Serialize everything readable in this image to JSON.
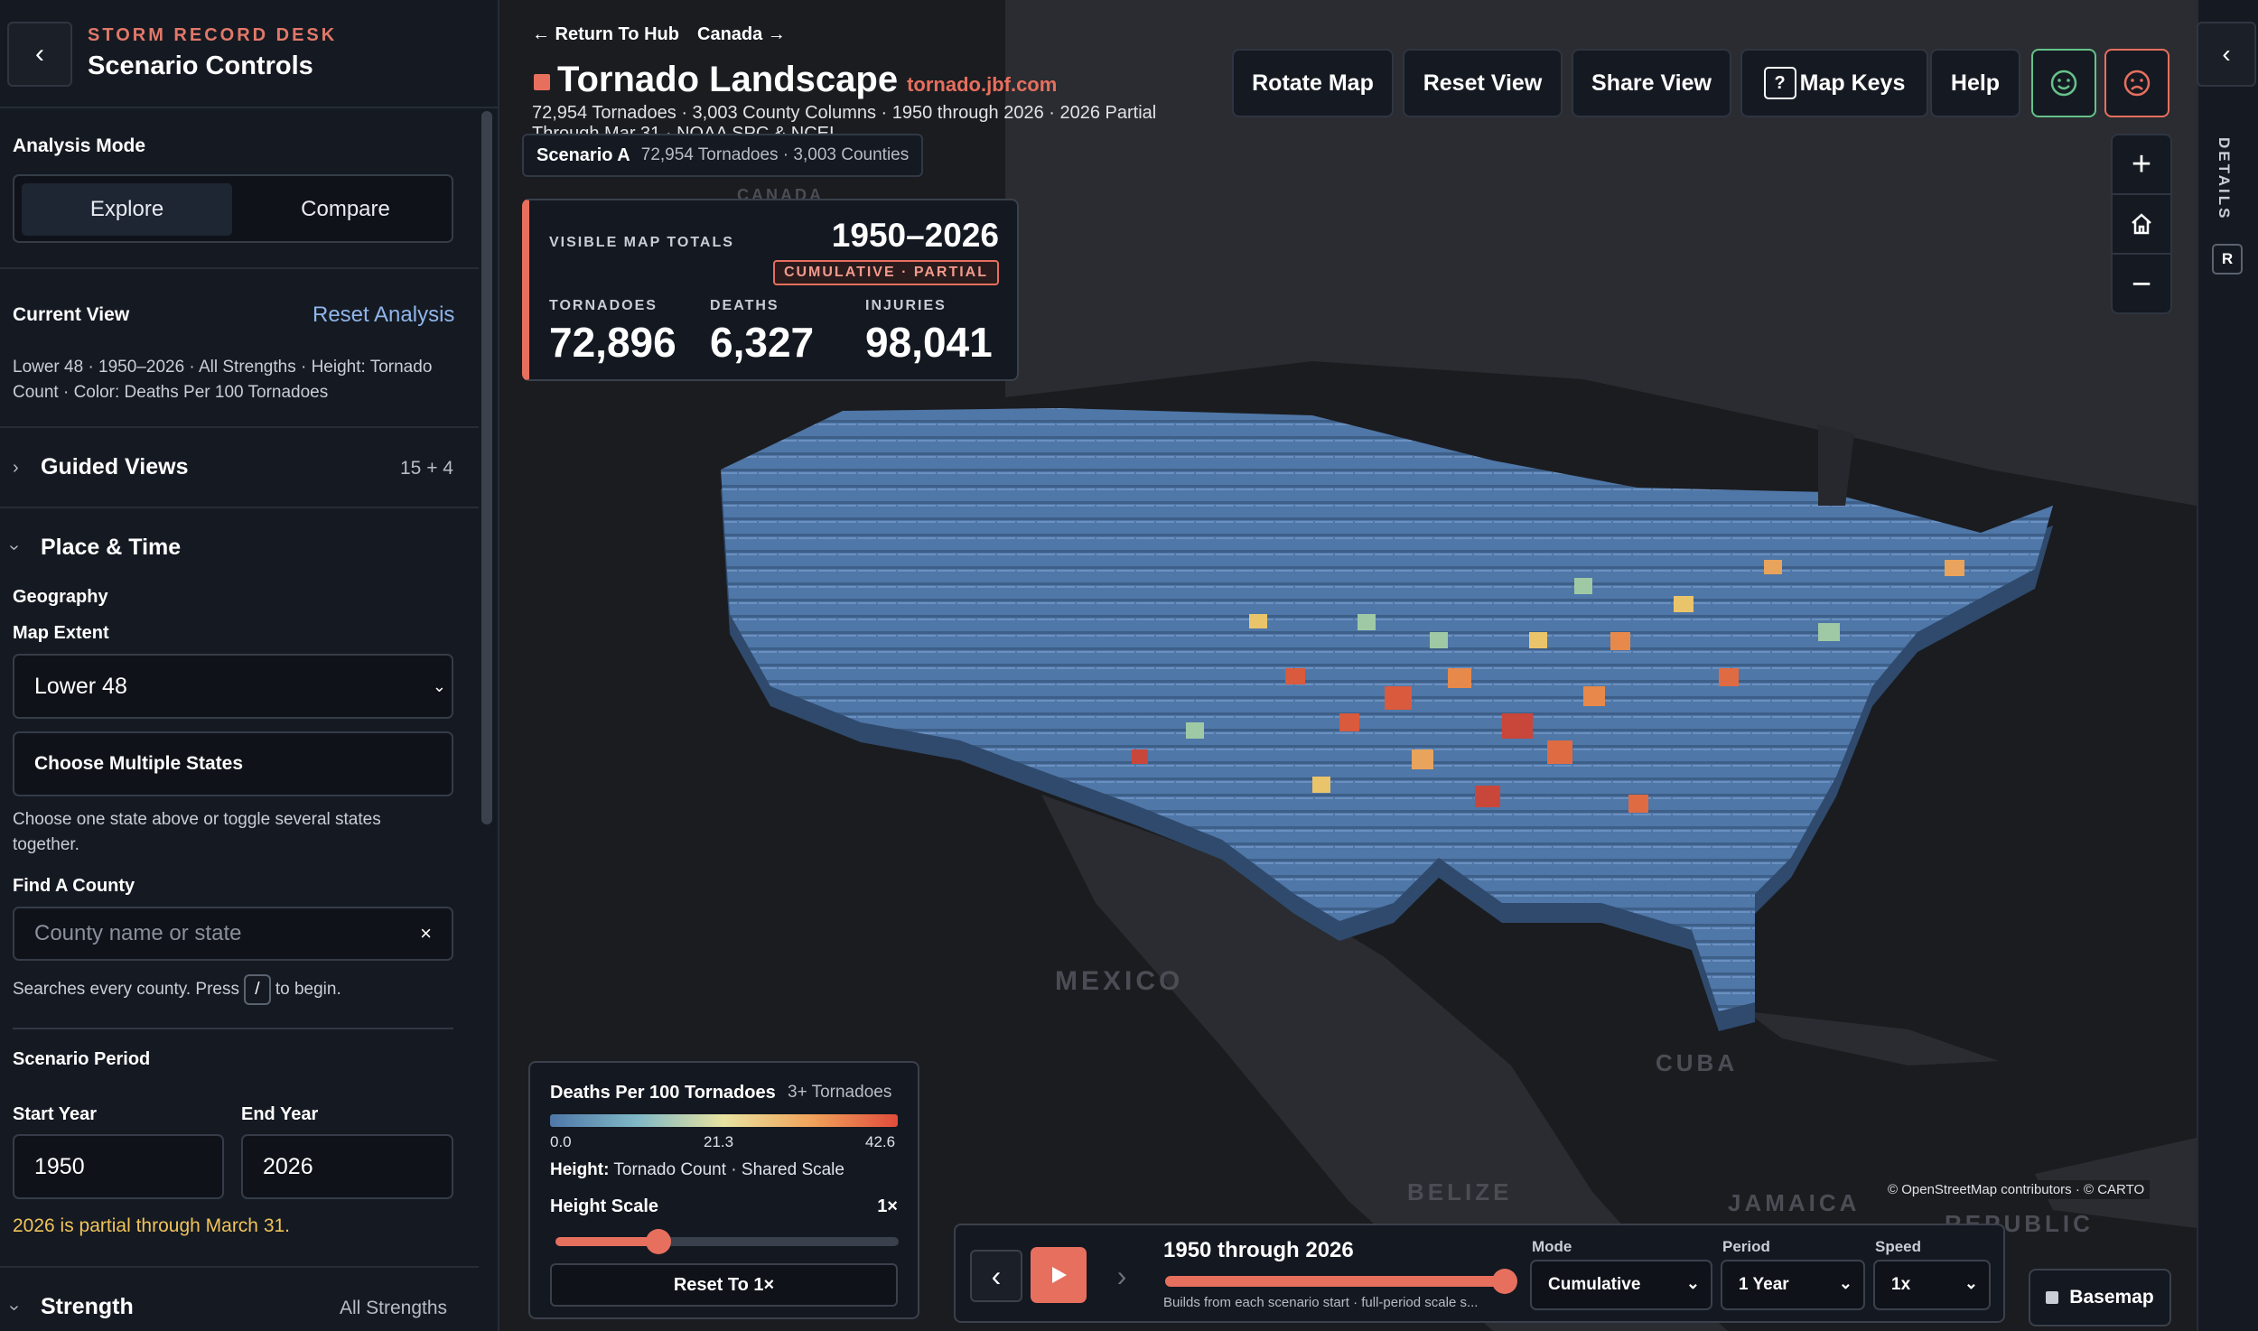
{
  "sidebar": {
    "eyebrow": "STORM RECORD DESK",
    "title": "Scenario Controls",
    "back_icon": "chevron-left-icon",
    "analysis_mode_label": "Analysis Mode",
    "modes": [
      "Explore",
      "Compare"
    ],
    "active_mode": "Explore",
    "current_view_label": "Current View",
    "reset_analysis": "Reset Analysis",
    "current_view_text": "Lower 48 · 1950–2026 · All Strengths · Height: Tornado Count · Color: Deaths Per 100 Tornadoes",
    "guided_views_label": "Guided Views",
    "guided_views_count": "15 + 4",
    "place_time_label": "Place & Time",
    "geography_label": "Geography",
    "map_extent_label": "Map Extent",
    "map_extent_value": "Lower 48",
    "choose_states": "Choose Multiple States",
    "choose_states_help": "Choose one state above or toggle several states together.",
    "find_county_label": "Find A County",
    "county_placeholder": "County name or state",
    "county_search_help_pre": "Searches every county. Press",
    "county_search_key": "/",
    "county_search_help_post": "to begin.",
    "scenario_period_label": "Scenario Period",
    "start_year_label": "Start Year",
    "start_year": "1950",
    "end_year_label": "End Year",
    "end_year": "2026",
    "partial_note": "2026 is partial through March 31.",
    "strength_label": "Strength",
    "strength_value": "All Strengths"
  },
  "header": {
    "return_link": "← Return To Hub",
    "next_link": "Canada →",
    "title": "Tornado Landscape",
    "url": "tornado.jbf.com",
    "meta": "72,954 Tornadoes · 3,003 County Columns · 1950 through 2026 · 2026 Partial Through Mar 31 · NOAA SPC & NCEI",
    "scenario_label": "Scenario A",
    "scenario_meta": "72,954 Tornadoes · 3,003 Counties",
    "buttons": {
      "rotate": "Rotate Map",
      "reset": "Reset View",
      "share": "Share View",
      "keys_key": "?",
      "keys": "Map Keys",
      "help": "Help"
    },
    "feedback_icons": [
      "smile-icon",
      "frown-icon"
    ],
    "colors": {
      "accent": "#e76f5e",
      "positive": "#66c28a"
    }
  },
  "totals": {
    "label": "VISIBLE MAP TOTALS",
    "period": "1950–2026",
    "badge": "CUMULATIVE · PARTIAL",
    "tornadoes_label": "TORNADOES",
    "tornadoes": "72,896",
    "deaths_label": "DEATHS",
    "deaths": "6,327",
    "injuries_label": "INJURIES",
    "injuries": "98,041"
  },
  "map": {
    "labels": [
      "CANADA",
      "MEXICO",
      "CUBA",
      "BELIZE",
      "JAMAICA",
      "REPUBLIC"
    ],
    "attribution": "© OpenStreetMap contributors · © CARTO",
    "zoom_in": "+",
    "zoom_out": "−",
    "home_icon": "home-icon"
  },
  "legend": {
    "title": "Deaths Per 100 Tornadoes",
    "filter": "3+ Tornadoes",
    "min": "0.0",
    "mid": "21.3",
    "max": "42.6",
    "height_label": "Height:",
    "height_value": "Tornado Count · Shared Scale",
    "scale_label": "Height Scale",
    "scale_value": "1×",
    "scale_fraction": 0.3,
    "reset_button": "Reset To 1×"
  },
  "playback": {
    "title": "1950 through 2026",
    "subtitle": "Builds from each scenario start · full-period scale s...",
    "progress": 1.0,
    "mode_label": "Mode",
    "mode_value": "Cumulative",
    "period_label": "Period",
    "period_value": "1 Year",
    "speed_label": "Speed",
    "speed_value": "1x"
  },
  "basemap_button": "Basemap",
  "right_rail": {
    "details_label": "DETAILS",
    "key_hint": "R"
  }
}
